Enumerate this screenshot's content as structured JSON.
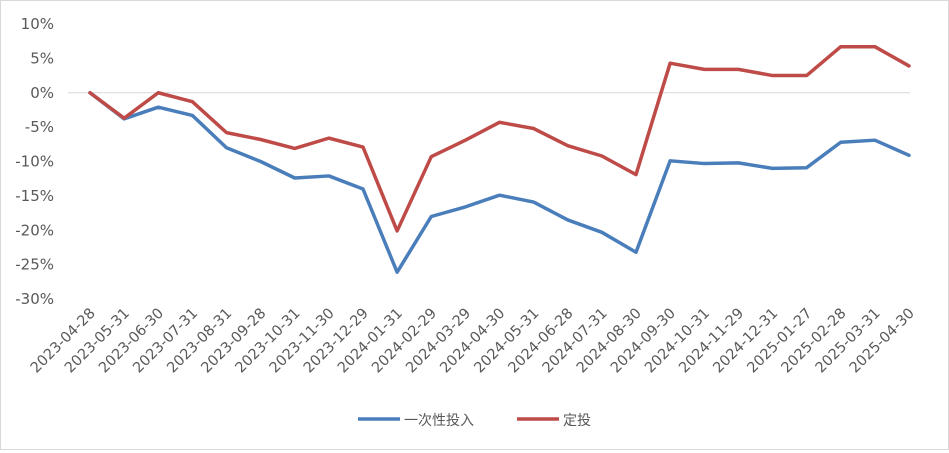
{
  "chart_data": {
    "type": "line",
    "title": "",
    "xlabel": "",
    "ylabel": "",
    "ylim": [
      -30,
      10
    ],
    "y_ticks": [
      10,
      5,
      0,
      -5,
      -10,
      -15,
      -20,
      -25,
      -30
    ],
    "y_tick_labels": [
      "10%",
      "5%",
      "0%",
      "-5%",
      "-10%",
      "-15%",
      "-20%",
      "-25%",
      "-30%"
    ],
    "grid": false,
    "legend_position": "bottom",
    "categories": [
      "2023-04-28",
      "2023-05-31",
      "2023-06-30",
      "2023-07-31",
      "2023-08-31",
      "2023-09-28",
      "2023-10-31",
      "2023-11-30",
      "2023-12-29",
      "2024-01-31",
      "2024-02-29",
      "2024-03-29",
      "2024-04-30",
      "2024-05-31",
      "2024-06-28",
      "2024-07-31",
      "2024-08-30",
      "2024-09-30",
      "2024-10-31",
      "2024-11-29",
      "2024-12-31",
      "2025-01-27",
      "2025-02-28",
      "2025-03-31",
      "2025-04-30"
    ],
    "series": [
      {
        "name": "一次性投入",
        "color": "#4a7ebb",
        "values": [
          0,
          -3.8,
          -2.1,
          -3.3,
          -8.0,
          -10.0,
          -12.4,
          -12.1,
          -14.0,
          -26.1,
          -18.0,
          -16.6,
          -14.9,
          -15.9,
          -18.5,
          -20.3,
          -23.2,
          -9.9,
          -10.3,
          -10.2,
          -11.0,
          -10.9,
          -7.2,
          -6.9,
          -9.1
        ]
      },
      {
        "name": "定投",
        "color": "#be4b48",
        "values": [
          0,
          -3.7,
          0.0,
          -1.3,
          -5.8,
          -6.8,
          -8.1,
          -6.6,
          -7.9,
          -20.1,
          -9.3,
          -6.9,
          -4.3,
          -5.2,
          -7.7,
          -9.2,
          -11.9,
          4.3,
          3.4,
          3.4,
          2.5,
          2.5,
          6.7,
          6.7,
          3.9
        ]
      }
    ]
  }
}
